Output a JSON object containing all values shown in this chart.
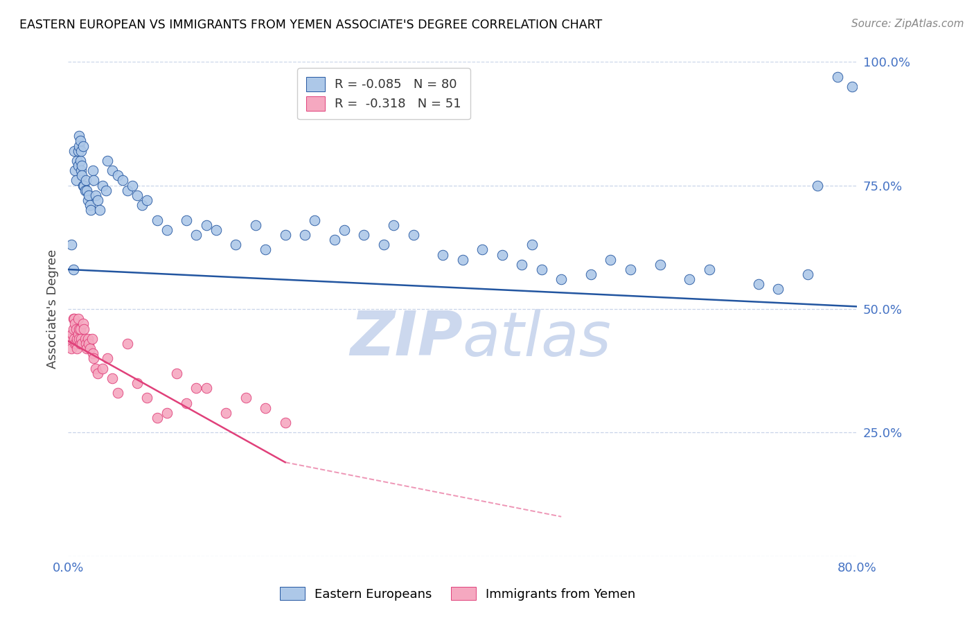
{
  "title": "EASTERN EUROPEAN VS IMMIGRANTS FROM YEMEN ASSOCIATE'S DEGREE CORRELATION CHART",
  "source": "Source: ZipAtlas.com",
  "ylabel": "Associate's Degree",
  "xlim": [
    0.0,
    80.0
  ],
  "ylim": [
    0.0,
    100.0
  ],
  "yticks": [
    0,
    25.0,
    50.0,
    75.0,
    100.0
  ],
  "ytick_labels": [
    "",
    "25.0%",
    "50.0%",
    "75.0%",
    "100.0%"
  ],
  "blue_R": -0.085,
  "blue_N": 80,
  "pink_R": -0.318,
  "pink_N": 51,
  "blue_color": "#adc8e8",
  "pink_color": "#f5a8c0",
  "blue_line_color": "#2255a0",
  "pink_line_color": "#e0407a",
  "legend_label_blue": "Eastern Europeans",
  "legend_label_pink": "Immigrants from Yemen",
  "blue_x": [
    0.3,
    0.5,
    0.6,
    0.7,
    0.8,
    0.9,
    1.0,
    1.0,
    1.1,
    1.1,
    1.2,
    1.2,
    1.3,
    1.3,
    1.4,
    1.4,
    1.5,
    1.5,
    1.6,
    1.7,
    1.8,
    1.9,
    2.0,
    2.1,
    2.2,
    2.3,
    2.5,
    2.6,
    2.8,
    3.0,
    3.2,
    3.5,
    3.8,
    4.0,
    4.5,
    5.0,
    5.5,
    6.0,
    6.5,
    7.0,
    7.5,
    8.0,
    9.0,
    10.0,
    12.0,
    13.0,
    14.0,
    15.0,
    17.0,
    19.0,
    20.0,
    22.0,
    24.0,
    25.0,
    27.0,
    28.0,
    30.0,
    32.0,
    33.0,
    35.0,
    38.0,
    40.0,
    42.0,
    44.0,
    46.0,
    47.0,
    48.0,
    50.0,
    53.0,
    55.0,
    57.0,
    60.0,
    63.0,
    65.0,
    70.0,
    72.0,
    75.0,
    76.0,
    78.0,
    79.5
  ],
  "blue_y": [
    63,
    58,
    82,
    78,
    76,
    80,
    79,
    82,
    83,
    85,
    84,
    80,
    78,
    82,
    79,
    77,
    75,
    83,
    75,
    74,
    76,
    74,
    72,
    73,
    71,
    70,
    78,
    76,
    73,
    72,
    70,
    75,
    74,
    80,
    78,
    77,
    76,
    74,
    75,
    73,
    71,
    72,
    68,
    66,
    68,
    65,
    67,
    66,
    63,
    67,
    62,
    65,
    65,
    68,
    64,
    66,
    65,
    63,
    67,
    65,
    61,
    60,
    62,
    61,
    59,
    63,
    58,
    56,
    57,
    60,
    58,
    59,
    56,
    58,
    55,
    54,
    57,
    75,
    97,
    95
  ],
  "pink_x": [
    0.2,
    0.3,
    0.4,
    0.5,
    0.5,
    0.6,
    0.6,
    0.7,
    0.7,
    0.8,
    0.8,
    0.9,
    0.9,
    1.0,
    1.0,
    1.1,
    1.1,
    1.2,
    1.2,
    1.3,
    1.4,
    1.5,
    1.6,
    1.7,
    1.8,
    1.9,
    2.0,
    2.1,
    2.2,
    2.4,
    2.5,
    2.6,
    2.8,
    3.0,
    3.5,
    4.0,
    4.5,
    5.0,
    6.0,
    7.0,
    8.0,
    9.0,
    10.0,
    11.0,
    12.0,
    13.0,
    14.0,
    16.0,
    18.0,
    20.0,
    22.0
  ],
  "pink_y": [
    44,
    42,
    45,
    46,
    48,
    44,
    48,
    43,
    47,
    46,
    43,
    44,
    42,
    45,
    48,
    44,
    46,
    43,
    46,
    44,
    43,
    47,
    46,
    44,
    43,
    42,
    44,
    43,
    42,
    44,
    41,
    40,
    38,
    37,
    38,
    40,
    36,
    33,
    43,
    35,
    32,
    28,
    29,
    37,
    31,
    34,
    34,
    29,
    32,
    30,
    27
  ],
  "blue_trend_x0": 0.0,
  "blue_trend_y0": 58.0,
  "blue_trend_x1": 80.0,
  "blue_trend_y1": 50.5,
  "pink_trend_x0": 0.0,
  "pink_trend_y0": 43.5,
  "pink_trend_x1": 22.0,
  "pink_trend_y1": 19.0,
  "pink_dash_x0": 22.0,
  "pink_dash_y0": 19.0,
  "pink_dash_x1": 50.0,
  "pink_dash_y1": 8.0,
  "background_color": "#ffffff",
  "grid_color": "#c8d4e8",
  "axis_color": "#4472c4",
  "title_color": "#000000",
  "watermark_color": "#ccd8ee"
}
